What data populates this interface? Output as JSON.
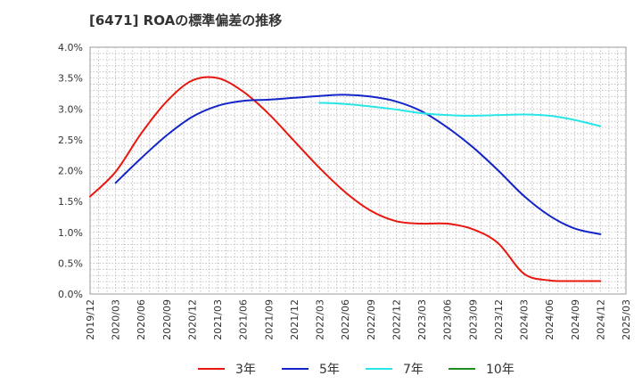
{
  "chart_data": {
    "type": "line",
    "title": "[6471]  ROAの標準偏差の推移",
    "ylim": [
      0,
      4.0
    ],
    "y_ticks": [
      "0.0%",
      "0.5%",
      "1.0%",
      "1.5%",
      "2.0%",
      "2.5%",
      "3.0%",
      "3.5%",
      "4.0%"
    ],
    "y_tick_values": [
      0,
      0.5,
      1.0,
      1.5,
      2.0,
      2.5,
      3.0,
      3.5,
      4.0
    ],
    "x_ticks": [
      "2019/12",
      "2020/03",
      "2020/06",
      "2020/09",
      "2020/12",
      "2021/03",
      "2021/06",
      "2021/09",
      "2021/12",
      "2022/03",
      "2022/06",
      "2022/09",
      "2022/12",
      "2023/03",
      "2023/06",
      "2023/09",
      "2023/12",
      "2024/03",
      "2024/06",
      "2024/09",
      "2024/12",
      "2025/03"
    ],
    "grid": true,
    "legend_position": "bottom",
    "series": [
      {
        "name": "3年",
        "color": "#e8170f",
        "x": [
          "2019/12",
          "2020/03",
          "2020/06",
          "2020/09",
          "2020/12",
          "2021/03",
          "2021/06",
          "2021/09",
          "2021/12",
          "2022/03",
          "2022/06",
          "2022/09",
          "2022/12",
          "2023/03",
          "2023/06",
          "2023/09",
          "2023/12",
          "2024/03",
          "2024/06",
          "2024/09",
          "2024/12"
        ],
        "values": [
          1.58,
          1.98,
          2.6,
          3.12,
          3.46,
          3.5,
          3.28,
          2.92,
          2.48,
          2.04,
          1.65,
          1.35,
          1.18,
          1.14,
          1.14,
          1.05,
          0.82,
          0.33,
          0.22,
          0.21,
          0.21
        ]
      },
      {
        "name": "5年",
        "color": "#1325c8",
        "x": [
          "2020/03",
          "2020/06",
          "2020/09",
          "2020/12",
          "2021/03",
          "2021/06",
          "2021/09",
          "2021/12",
          "2022/03",
          "2022/06",
          "2022/09",
          "2022/12",
          "2023/03",
          "2023/06",
          "2023/09",
          "2023/12",
          "2024/03",
          "2024/06",
          "2024/09",
          "2024/12"
        ],
        "values": [
          1.8,
          2.2,
          2.57,
          2.87,
          3.05,
          3.13,
          3.15,
          3.18,
          3.21,
          3.23,
          3.2,
          3.12,
          2.96,
          2.7,
          2.38,
          2.0,
          1.59,
          1.27,
          1.06,
          0.97
        ]
      },
      {
        "name": "7年",
        "color": "#29e5e8",
        "x": [
          "2022/03",
          "2022/06",
          "2022/09",
          "2022/12",
          "2023/03",
          "2023/06",
          "2023/09",
          "2023/12",
          "2024/03",
          "2024/06",
          "2024/09",
          "2024/12"
        ],
        "values": [
          3.1,
          3.08,
          3.04,
          2.99,
          2.93,
          2.9,
          2.89,
          2.9,
          2.91,
          2.89,
          2.82,
          2.72
        ]
      },
      {
        "name": "10年",
        "color": "#1f8f1f",
        "x": [],
        "values": []
      }
    ]
  }
}
